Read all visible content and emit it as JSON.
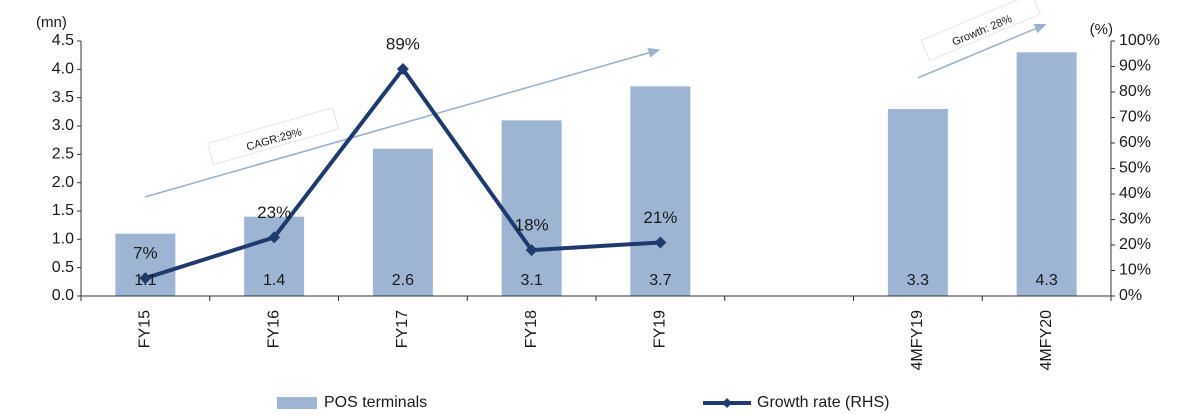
{
  "chart_data": {
    "type": "bar",
    "categories": [
      "FY15",
      "FY16",
      "FY17",
      "FY18",
      "FY19",
      "",
      "4MFY19",
      "4MFY20"
    ],
    "series": [
      {
        "name": "POS terminals",
        "kind": "bar",
        "axis": "left",
        "values": [
          1.1,
          1.4,
          2.6,
          3.1,
          3.7,
          null,
          3.3,
          4.3
        ],
        "labels": [
          "1.1",
          "1.4",
          "2.6",
          "3.1",
          "3.7",
          "",
          "3.3",
          "4.3"
        ],
        "color": "#9db5d3"
      },
      {
        "name": "Growth rate (RHS)",
        "kind": "line",
        "axis": "right",
        "values": [
          7,
          23,
          89,
          18,
          21,
          null,
          null,
          null
        ],
        "labels": [
          "7%",
          "23%",
          "89%",
          "18%",
          "21%",
          "",
          "",
          ""
        ],
        "color": "#1f3a6e"
      }
    ],
    "left_axis": {
      "unit": "(mn)",
      "min": 0,
      "max": 4.5,
      "ticks": [
        "0.0",
        "0.5",
        "1.0",
        "1.5",
        "2.0",
        "2.5",
        "3.0",
        "3.5",
        "4.0",
        "4.5"
      ]
    },
    "right_axis": {
      "unit": "(%)",
      "min": 0,
      "max": 100,
      "ticks": [
        "0%",
        "10%",
        "20%",
        "30%",
        "40%",
        "50%",
        "60%",
        "70%",
        "80%",
        "90%",
        "100%"
      ]
    },
    "annotations": [
      {
        "text": "CAGR:29%",
        "trend_from": {
          "category": "FY15",
          "value": 1.75
        },
        "trend_to": {
          "category": "FY19",
          "value": 4.35
        }
      },
      {
        "text": "Growth: 28%",
        "trend_from": {
          "category": "4MFY19",
          "value": 3.85
        },
        "trend_to": {
          "category": "4MFY20",
          "value": 4.8
        }
      }
    ],
    "legend": {
      "placement": "bottom",
      "items": [
        "POS terminals",
        "Growth rate (RHS)"
      ]
    },
    "grid": false
  }
}
